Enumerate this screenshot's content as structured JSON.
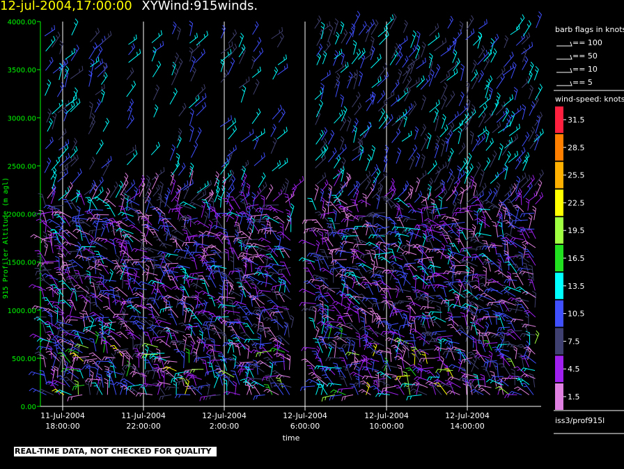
{
  "header": {
    "datetime": "12-jul-2004,17:00:00",
    "product": "XYWind:915winds."
  },
  "chart_data": {
    "type": "wind-barb",
    "ylabel": "915 Profiler Altitude (m agl)",
    "xlabel": "time",
    "y_ticks": [
      "0.00",
      "500.00",
      "1000.00",
      "1500.00",
      "2000.00",
      "2500.00",
      "3000.00",
      "3500.00",
      "4000.00"
    ],
    "ylim": [
      0,
      4000
    ],
    "x_ticks": [
      {
        "date": "11-Jul-2004",
        "time": "18:00:00"
      },
      {
        "date": "11-Jul-2004",
        "time": "22:00:00"
      },
      {
        "date": "12-Jul-2004",
        "time": "2:00:00"
      },
      {
        "date": "12-Jul-2004",
        "time": "6:00:00"
      },
      {
        "date": "12-Jul-2004",
        "time": "10:00:00"
      },
      {
        "date": "12-Jul-2004",
        "time": "14:00:00"
      }
    ],
    "barb_legend": {
      "title": "barb flags in knots",
      "items": [
        "== 100",
        "== 50",
        "== 10",
        "== 5"
      ]
    },
    "color_legend": {
      "title": "wind-speed: knots",
      "levels": [
        {
          "value": "31.5",
          "color": "#ff2040"
        },
        {
          "value": "28.5",
          "color": "#ff8000"
        },
        {
          "value": "25.5",
          "color": "#ffb000"
        },
        {
          "value": "22.5",
          "color": "#ffff00"
        },
        {
          "value": "19.5",
          "color": "#a0ff40"
        },
        {
          "value": "16.5",
          "color": "#20e020"
        },
        {
          "value": "13.5",
          "color": "#00ffff"
        },
        {
          "value": "10.5",
          "color": "#4050ff"
        },
        {
          "value": "7.5",
          "color": "#404070"
        },
        {
          "value": "4.5",
          "color": "#a020f0"
        },
        {
          "value": "1.5",
          "color": "#e080e0"
        }
      ]
    },
    "grid": "vertical lines at labeled times",
    "axis_color": "#00ff00"
  },
  "footer": {
    "qa_note": "REAL-TIME DATA, NOT CHECKED FOR QUALITY",
    "source": "iss3/prof915l"
  }
}
